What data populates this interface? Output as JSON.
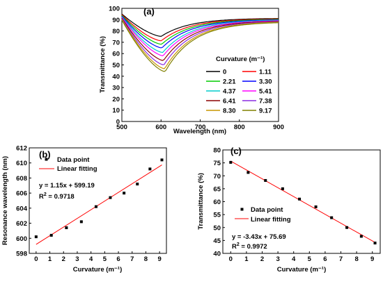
{
  "chart_data": [
    {
      "type": "line",
      "panel_label": "(a)",
      "xlabel": "Wavelength (nm)",
      "ylabel": "Transmittance (%)",
      "xlim": [
        500,
        900
      ],
      "ylim": [
        0,
        100
      ],
      "xticks": [
        500,
        600,
        700,
        800,
        900
      ],
      "yticks": [
        0,
        10,
        20,
        30,
        40,
        50,
        60,
        70,
        80,
        90,
        100
      ],
      "legend_title": "Curvature (m⁻¹)",
      "legend_placement": "right",
      "series": [
        {
          "name": "0",
          "color": "#000000",
          "min_wavelength": 600.2,
          "min_transmittance": 75.2
        },
        {
          "name": "1.11",
          "color": "#ff0000",
          "min_wavelength": 600.4,
          "min_transmittance": 71.3
        },
        {
          "name": "2.21",
          "color": "#00cc00",
          "min_wavelength": 601.4,
          "min_transmittance": 68.2
        },
        {
          "name": "3.30",
          "color": "#0000ff",
          "min_wavelength": 602.2,
          "min_transmittance": 65.0
        },
        {
          "name": "4.37",
          "color": "#00cccc",
          "min_wavelength": 604.2,
          "min_transmittance": 61.0
        },
        {
          "name": "5.41",
          "color": "#ff00ff",
          "min_wavelength": 605.4,
          "min_transmittance": 58.0
        },
        {
          "name": "6.41",
          "color": "#8b0000",
          "min_wavelength": 606.0,
          "min_transmittance": 53.8
        },
        {
          "name": "7.38",
          "color": "#8a2be2",
          "min_wavelength": 607.2,
          "min_transmittance": 50.0
        },
        {
          "name": "8.30",
          "color": "#c89600",
          "min_wavelength": 609.2,
          "min_transmittance": 46.6
        },
        {
          "name": "9.17",
          "color": "#808000",
          "min_wavelength": 610.4,
          "min_transmittance": 44.0
        }
      ]
    },
    {
      "type": "scatter",
      "panel_label": "(b)",
      "xlabel": "Curvature (m⁻¹)",
      "ylabel": "Resonance wavelength (nm)",
      "xlim": [
        -0.5,
        9.5
      ],
      "ylim": [
        598,
        612
      ],
      "xticks": [
        0,
        1,
        2,
        3,
        4,
        5,
        6,
        7,
        8,
        9
      ],
      "yticks": [
        598,
        600,
        602,
        604,
        606,
        608,
        610,
        612
      ],
      "legend": [
        "Data point",
        "Linear fitting"
      ],
      "legend_placement": "top-left",
      "equation": "y = 1.15x + 599.19",
      "r2_prefix": "R",
      "r2_sup": "2",
      "r2_value": " = 0.9718",
      "x": [
        0,
        1.11,
        2.21,
        3.3,
        4.37,
        5.41,
        6.41,
        7.38,
        8.3,
        9.17
      ],
      "y": [
        600.2,
        600.4,
        601.4,
        602.2,
        604.2,
        605.4,
        606.0,
        607.2,
        609.2,
        610.4
      ],
      "fit": {
        "slope": 1.15,
        "intercept": 599.19,
        "x_range": [
          0,
          9.17
        ]
      }
    },
    {
      "type": "scatter",
      "panel_label": "(c)",
      "xlabel": "Curvature (m⁻¹)",
      "ylabel": "Transmittance (%)",
      "xlim": [
        -0.5,
        9.5
      ],
      "ylim": [
        40,
        80
      ],
      "xticks": [
        0,
        1,
        2,
        3,
        4,
        5,
        6,
        7,
        8,
        9
      ],
      "yticks": [
        40,
        45,
        50,
        55,
        60,
        65,
        70,
        75,
        80
      ],
      "legend": [
        "Data point",
        "Linear fitting"
      ],
      "legend_placement": "bottom-left",
      "equation": "y = -3.43x + 75.69",
      "r2_prefix": "R",
      "r2_sup": "2",
      "r2_value": " = 0.9972",
      "x": [
        0,
        1.11,
        2.21,
        3.3,
        4.37,
        5.41,
        6.41,
        7.38,
        8.3,
        9.17
      ],
      "y": [
        75.2,
        71.3,
        68.2,
        65.0,
        61.0,
        58.0,
        53.8,
        50.0,
        46.6,
        44.0
      ],
      "fit": {
        "slope": -3.43,
        "intercept": 75.69,
        "x_range": [
          0,
          9.17
        ]
      }
    }
  ]
}
